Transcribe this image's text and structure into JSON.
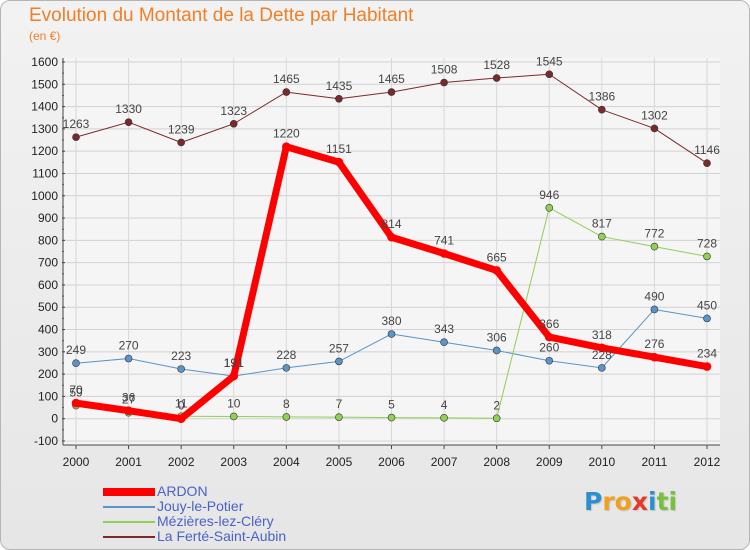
{
  "title": "Evolution du Montant de la Dette par Habitant",
  "unit": "(en €)",
  "brand": {
    "letters": [
      "P",
      "r",
      "o",
      "x",
      "i",
      "t",
      "i"
    ],
    "colors": [
      "#2e8fd0",
      "#f0a020",
      "#f0a020",
      "#e53a2a",
      "#2e8fd0",
      "#78c040",
      "#78c040"
    ]
  },
  "chart_data": {
    "type": "line",
    "title": "Evolution du Montant de la Dette par Habitant",
    "ylabel": "(en €)",
    "xlabel": "",
    "x": [
      "2000",
      "2001",
      "2002",
      "2003",
      "2004",
      "2005",
      "2006",
      "2007",
      "2008",
      "2009",
      "2010",
      "2011",
      "2012"
    ],
    "ylim": [
      -100,
      1600
    ],
    "yticks": [
      -100,
      0,
      100,
      200,
      300,
      400,
      500,
      600,
      700,
      800,
      900,
      1000,
      1100,
      1200,
      1300,
      1400,
      1500,
      1600
    ],
    "grid": true,
    "legend_position": "bottom-left",
    "series": [
      {
        "name": "ARDON",
        "color": "#ff0000",
        "width": 7,
        "values": [
          70,
          36,
          0,
          191,
          1220,
          1151,
          814,
          741,
          665,
          366,
          318,
          276,
          234
        ],
        "labels": [
          "70",
          "36",
          "0",
          "191",
          "1220",
          "1151",
          "814",
          "741",
          "665",
          "366",
          "318",
          "276",
          "234"
        ]
      },
      {
        "name": "Jouy-le-Potier",
        "color": "#5b94c8",
        "width": 1,
        "values": [
          249,
          270,
          223,
          191,
          228,
          257,
          380,
          343,
          306,
          260,
          228,
          490,
          450
        ],
        "labels": [
          "249",
          "270",
          "223",
          "191",
          "228",
          "257",
          "380",
          "343",
          "306",
          "260",
          "228",
          "490",
          "450"
        ]
      },
      {
        "name": "Mézières-lez-Cléry",
        "color": "#8fd055",
        "width": 1,
        "values": [
          59,
          27,
          11,
          10,
          8,
          7,
          5,
          4,
          2,
          946,
          817,
          772,
          728
        ],
        "labels": [
          "59",
          "27",
          "11",
          "10",
          "8",
          "7",
          "5",
          "4",
          "2",
          "946",
          "817",
          "772",
          "728"
        ]
      },
      {
        "name": "La Ferté-Saint-Aubin",
        "color": "#7b2a2a",
        "width": 1,
        "values": [
          1263,
          1330,
          1239,
          1323,
          1465,
          1435,
          1465,
          1508,
          1528,
          1545,
          1386,
          1302,
          1146
        ],
        "labels": [
          "1263",
          "1330",
          "1239",
          "1323",
          "1465",
          "1435",
          "1465",
          "1508",
          "1528",
          "1545",
          "1386",
          "1302",
          "1146"
        ]
      }
    ]
  }
}
